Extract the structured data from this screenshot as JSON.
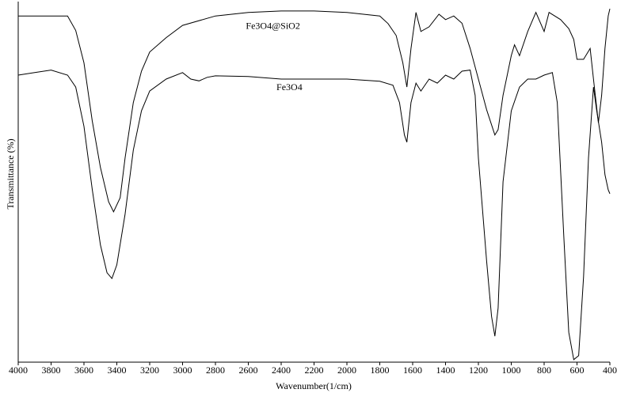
{
  "chart_data": {
    "type": "line",
    "x_label": "Wavenumber(1/cm)",
    "y_label": "Transmittance (%)",
    "xlim": [
      4000,
      400
    ],
    "ylim": [
      0,
      100
    ],
    "xticks": [
      4000,
      3800,
      3600,
      3400,
      3200,
      3000,
      2800,
      2600,
      2400,
      2200,
      2000,
      1800,
      1600,
      1400,
      1200,
      1000,
      800,
      600,
      400
    ],
    "grid": false,
    "series": [
      {
        "name": "Fe3O4@SiO2",
        "color": "#000000",
        "x": [
          4000,
          3800,
          3700,
          3650,
          3600,
          3550,
          3500,
          3450,
          3420,
          3380,
          3350,
          3300,
          3250,
          3200,
          3100,
          3000,
          2800,
          2600,
          2400,
          2200,
          2000,
          1800,
          1750,
          1700,
          1660,
          1635,
          1610,
          1580,
          1550,
          1500,
          1440,
          1400,
          1350,
          1300,
          1250,
          1200,
          1150,
          1100,
          1080,
          1050,
          1000,
          980,
          950,
          900,
          850,
          800,
          770,
          700,
          650,
          620,
          600,
          560,
          520,
          500,
          470,
          450,
          430,
          410,
          400
        ],
        "values": [
          96,
          96,
          96,
          92,
          83,
          67,
          54,
          44.5,
          41.7,
          45.6,
          56.6,
          72,
          80.7,
          86,
          90,
          93.4,
          96,
          97,
          97.4,
          97.4,
          97,
          96,
          93.9,
          90.6,
          83,
          76.3,
          87,
          97,
          91.7,
          93,
          96.5,
          95,
          96,
          94,
          87,
          78.5,
          70,
          63,
          64.5,
          74,
          85,
          88,
          85,
          91.7,
          97,
          91.7,
          97,
          95,
          92.5,
          89.5,
          84,
          84,
          87,
          78.5,
          66.4,
          74,
          87,
          96,
          98
        ]
      },
      {
        "name": "Fe3O4",
        "color": "#000000",
        "x": [
          4000,
          3900,
          3800,
          3700,
          3650,
          3600,
          3550,
          3500,
          3460,
          3430,
          3400,
          3350,
          3300,
          3250,
          3200,
          3100,
          3000,
          2950,
          2900,
          2850,
          2800,
          2600,
          2400,
          2200,
          2000,
          1800,
          1720,
          1680,
          1650,
          1635,
          1610,
          1580,
          1550,
          1500,
          1450,
          1400,
          1350,
          1300,
          1250,
          1220,
          1200,
          1150,
          1120,
          1100,
          1080,
          1050,
          1000,
          950,
          900,
          850,
          800,
          750,
          720,
          680,
          650,
          620,
          590,
          560,
          530,
          500,
          480,
          450,
          430,
          410,
          400
        ],
        "values": [
          79.6,
          80.3,
          81,
          79.6,
          76.3,
          65.4,
          48,
          32.5,
          24.8,
          23.2,
          27,
          41,
          58.8,
          69.7,
          75.2,
          78.5,
          80.3,
          78.5,
          78,
          79,
          79.4,
          79.2,
          78.5,
          78.5,
          78.5,
          77.9,
          76.8,
          72,
          63,
          61,
          72,
          77.4,
          75.2,
          78.5,
          77.4,
          79.6,
          78.5,
          80.7,
          81,
          74,
          56.6,
          28,
          12.7,
          7.2,
          15,
          50,
          69.7,
          76.3,
          78.5,
          78.5,
          79.6,
          80.3,
          72,
          34.6,
          8.3,
          0.7,
          1.8,
          23.7,
          56.6,
          76.3,
          69.7,
          61,
          52,
          47.8,
          46.7
        ]
      }
    ]
  }
}
